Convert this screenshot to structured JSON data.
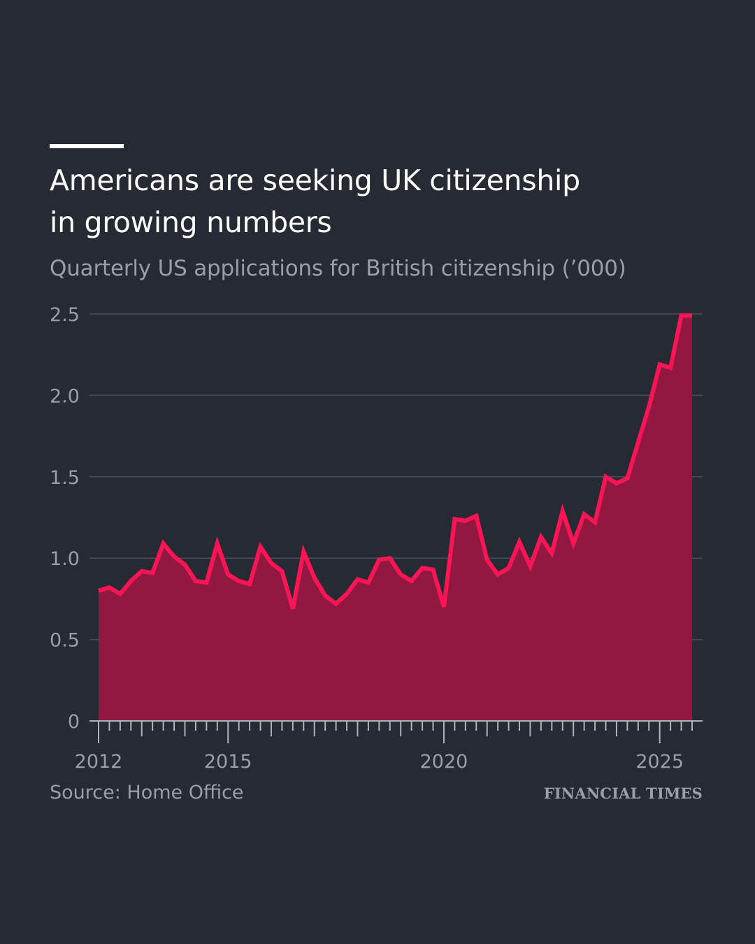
{
  "header": {
    "title_line1": "Americans are seeking UK citizenship",
    "title_line2": "in growing numbers",
    "subtitle": "Quarterly US applications for British citizenship (’000)"
  },
  "footer": {
    "source": "Source: Home Office",
    "brand": "FINANCIAL TIMES"
  },
  "colors": {
    "line": "#ff1556",
    "area": "#931841",
    "background": "#262a33",
    "grid": "#4a4e57",
    "text_muted": "#9a9ea6"
  },
  "chart_data": {
    "type": "area",
    "title": "Americans are seeking UK citizenship in growing numbers",
    "subtitle": "Quarterly US applications for British citizenship (’000)",
    "xlabel": "",
    "ylabel": "",
    "ylim": [
      0,
      2.5
    ],
    "y_ticks": [
      0,
      0.5,
      1.0,
      1.5,
      2.0,
      2.5
    ],
    "y_tick_labels": [
      "0",
      "0.5",
      "1.0",
      "1.5",
      "2.0",
      "2.5"
    ],
    "x_range": [
      2012.0,
      2025.75
    ],
    "x_tick_years": [
      2012,
      2015,
      2020,
      2025
    ],
    "x_tick_labels": [
      "2012",
      "2015",
      "2020",
      "2025"
    ],
    "grid": true,
    "series": [
      {
        "name": "US applications",
        "x": [
          2012.0,
          2012.25,
          2012.5,
          2012.75,
          2013.0,
          2013.25,
          2013.5,
          2013.75,
          2014.0,
          2014.25,
          2014.5,
          2014.75,
          2015.0,
          2015.25,
          2015.5,
          2015.75,
          2016.0,
          2016.25,
          2016.5,
          2016.75,
          2017.0,
          2017.25,
          2017.5,
          2017.75,
          2018.0,
          2018.25,
          2018.5,
          2018.75,
          2019.0,
          2019.25,
          2019.5,
          2019.75,
          2020.0,
          2020.25,
          2020.5,
          2020.75,
          2021.0,
          2021.25,
          2021.5,
          2021.75,
          2022.0,
          2022.25,
          2022.5,
          2022.75,
          2023.0,
          2023.25,
          2023.5,
          2023.75,
          2024.0,
          2024.25,
          2024.5,
          2024.75,
          2025.0,
          2025.25,
          2025.5,
          2025.75
        ],
        "values": [
          0.8,
          0.82,
          0.78,
          0.86,
          0.92,
          0.91,
          1.09,
          1.01,
          0.96,
          0.86,
          0.85,
          1.09,
          0.9,
          0.86,
          0.84,
          1.07,
          0.97,
          0.92,
          0.69,
          1.04,
          0.88,
          0.77,
          0.72,
          0.78,
          0.87,
          0.85,
          0.99,
          1.0,
          0.9,
          0.86,
          0.94,
          0.93,
          0.7,
          1.24,
          1.23,
          1.26,
          0.99,
          0.9,
          0.94,
          1.1,
          0.95,
          1.13,
          1.03,
          1.29,
          1.09,
          1.27,
          1.22,
          1.5,
          1.46,
          1.49,
          1.71,
          1.93,
          2.19,
          2.17,
          2.49,
          2.49
        ]
      }
    ]
  }
}
